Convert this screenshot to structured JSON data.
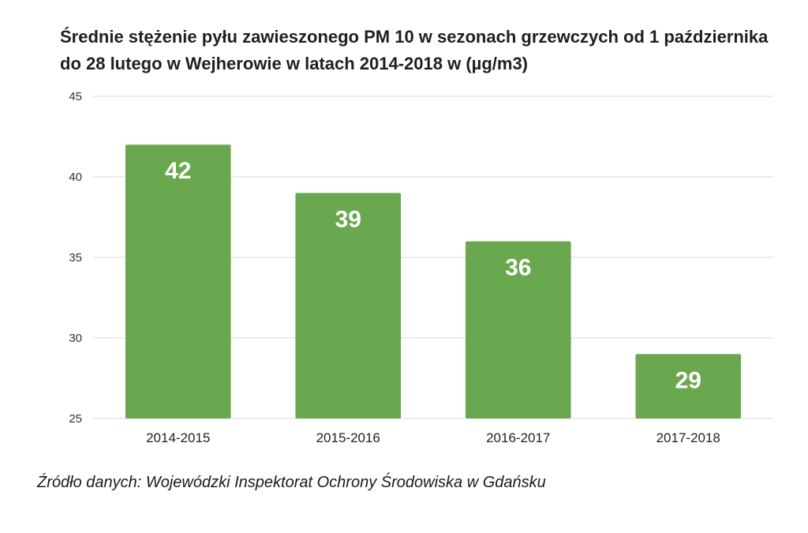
{
  "chart_data": {
    "type": "bar",
    "title": "Średnie stężenie pyłu zawieszonego PM 10 w sezonach grzewczych od 1 października do 28 lutego w Wejherowie w latach 2014-2018 w (µg/m3)",
    "categories": [
      "2014-2015",
      "2015-2016",
      "2016-2017",
      "2017-2018"
    ],
    "values": [
      42,
      39,
      36,
      29
    ],
    "data_labels": [
      "42",
      "39",
      "36",
      "29"
    ],
    "xlabel": "",
    "ylabel": "",
    "ylim": [
      25,
      45
    ],
    "yticks": [
      25,
      30,
      35,
      40,
      45
    ],
    "ytick_labels": [
      "25",
      "30",
      "35",
      "40",
      "45"
    ],
    "grid": true,
    "legend": "none",
    "bar_color": "#6aa84f",
    "grid_color": "#d9d9d9",
    "label_color": "#ffffff"
  },
  "source": "Źródło danych: Wojewódzki Inspektorat Ochrony Środowiska w Gdańsku"
}
